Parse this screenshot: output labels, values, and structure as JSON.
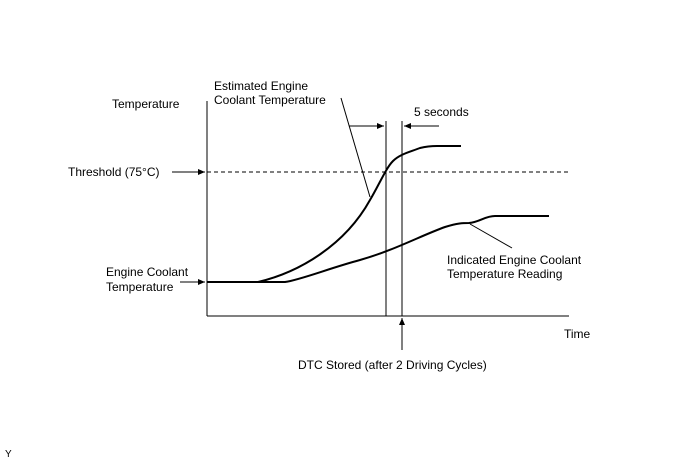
{
  "y_axis_label": "Temperature",
  "x_axis_label": "Time",
  "threshold_label": "Threshold (75°C)",
  "baseline_label": [
    "Engine Coolant",
    "Temperature"
  ],
  "estimated_label": [
    "Estimated Engine",
    "Coolant Temperature"
  ],
  "indicated_label": [
    "Indicated Engine Coolant",
    "Temperature Reading"
  ],
  "interval_label": "5 seconds",
  "dtc_label": "DTC Stored (after 2 Driving Cycles)",
  "figure_id": "Y"
}
